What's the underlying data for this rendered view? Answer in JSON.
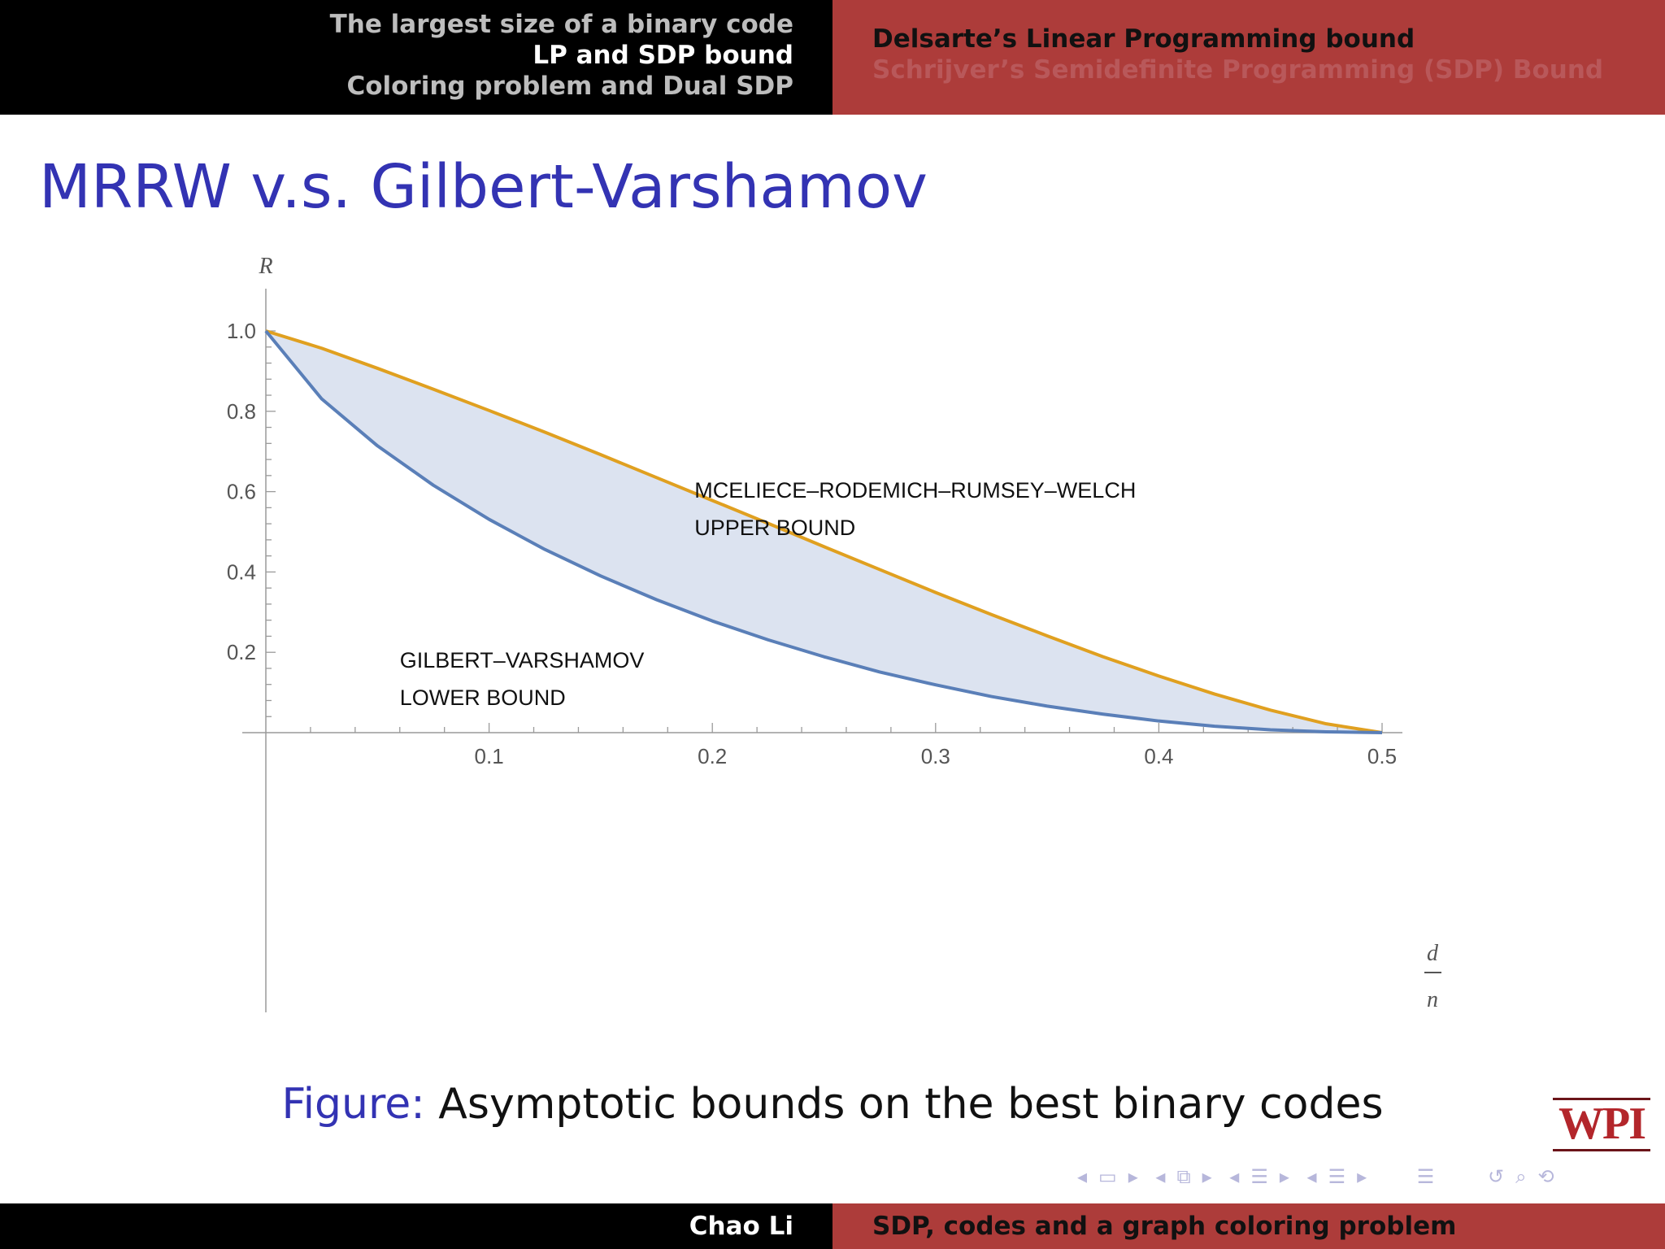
{
  "header": {
    "sections": [
      "The largest size of a binary code",
      "LP and SDP bound",
      "Coloring problem and Dual SDP"
    ],
    "current_section": 1,
    "subsections": [
      "Delsarte’s Linear Programming bound",
      "Schrijver’s Semidefinite Programming (SDP) Bound"
    ],
    "current_subsection": 0
  },
  "slide": {
    "title": "MRRW v.s. Gilbert-Varshamov",
    "caption_label": "Figure:",
    "caption_text": "Asymptotic bounds on the best binary codes"
  },
  "chart_data": {
    "type": "line",
    "xlabel_num": "d",
    "xlabel_den": "n",
    "ylabel": "R",
    "xlim": [
      0,
      0.5
    ],
    "ylim": [
      0,
      1.0
    ],
    "xticks": [
      "0.1",
      "0.2",
      "0.3",
      "0.4",
      "0.5"
    ],
    "yticks": [
      "0.2",
      "0.4",
      "0.6",
      "0.8",
      "1.0"
    ],
    "grid": false,
    "fill_between_series": true,
    "series": [
      {
        "name": "MCELIECE–RODEMICH–RUMSEY–WELCH UPPER BOUND",
        "color": "#e0a020",
        "x": [
          0,
          0.025,
          0.05,
          0.075,
          0.1,
          0.125,
          0.15,
          0.175,
          0.2,
          0.225,
          0.25,
          0.275,
          0.3,
          0.325,
          0.35,
          0.375,
          0.4,
          0.425,
          0.45,
          0.475,
          0.5
        ],
        "y": [
          1.0,
          0.957,
          0.907,
          0.855,
          0.802,
          0.748,
          0.692,
          0.635,
          0.578,
          0.521,
          0.463,
          0.406,
          0.349,
          0.294,
          0.241,
          0.189,
          0.141,
          0.096,
          0.056,
          0.022,
          0.0
        ]
      },
      {
        "name": "GILBERT–VARSHAMOV LOWER BOUND",
        "color": "#5a7fb8",
        "x": [
          0,
          0.025,
          0.05,
          0.075,
          0.1,
          0.125,
          0.15,
          0.175,
          0.2,
          0.225,
          0.25,
          0.275,
          0.3,
          0.325,
          0.35,
          0.375,
          0.4,
          0.425,
          0.45,
          0.475,
          0.5
        ],
        "y": [
          1.0,
          0.831,
          0.714,
          0.616,
          0.531,
          0.456,
          0.39,
          0.331,
          0.278,
          0.231,
          0.189,
          0.151,
          0.119,
          0.09,
          0.066,
          0.046,
          0.029,
          0.016,
          0.007,
          0.002,
          0.0
        ]
      }
    ],
    "annotations": [
      {
        "lines": [
          "MCELIECE–RODEMICH–RUMSEY–WELCH",
          "UPPER BOUND"
        ],
        "x": 0.192,
        "y": 0.605
      },
      {
        "lines": [
          "GILBERT–VARSHAMOV",
          "LOWER BOUND"
        ],
        "x": 0.06,
        "y": 0.182
      }
    ],
    "fill_color": "#dce3f0"
  },
  "footer": {
    "author": "Chao Li",
    "short_title": "SDP, codes and a graph coloring problem"
  },
  "logo": {
    "text": "WPI"
  },
  "nav": {
    "symbols": [
      "◂",
      "▭",
      "▸",
      "◂",
      "⧉",
      "▸",
      "◂",
      "☰",
      "▸",
      "◂",
      "☰",
      "▸",
      "☰",
      "↺",
      "⌕",
      "⟲"
    ]
  }
}
